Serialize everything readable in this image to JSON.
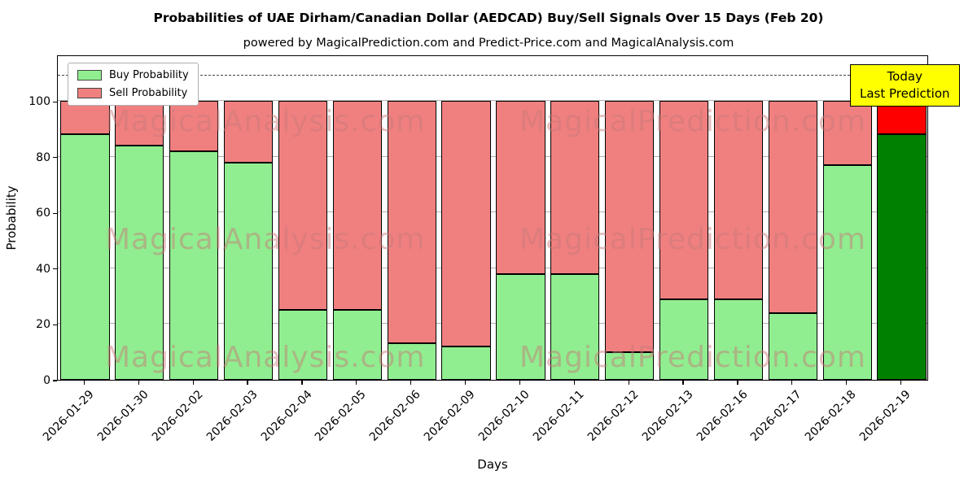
{
  "chart_data": {
    "type": "bar",
    "stacked": true,
    "title": "Probabilities of UAE Dirham/Canadian Dollar (AEDCAD) Buy/Sell Signals Over 15 Days (Feb 20)",
    "subtitle": "powered by MagicalPrediction.com and Predict-Price.com and MagicalAnalysis.com",
    "xlabel": "Days",
    "ylabel": "Probability",
    "categories": [
      "2026-01-29",
      "2026-01-30",
      "2026-02-02",
      "2026-02-03",
      "2026-02-04",
      "2026-02-05",
      "2026-02-06",
      "2026-02-09",
      "2026-02-10",
      "2026-02-11",
      "2026-02-12",
      "2026-02-13",
      "2026-02-16",
      "2026-02-17",
      "2026-02-18",
      "2026-02-19"
    ],
    "series": [
      {
        "name": "Buy Probability",
        "color": "#90ee90",
        "values": [
          88,
          84,
          82,
          78,
          25,
          25,
          13,
          12,
          38,
          38,
          10,
          29,
          29,
          24,
          77,
          88
        ]
      },
      {
        "name": "Sell Probability",
        "color": "#f08080",
        "values": [
          12,
          16,
          18,
          22,
          75,
          75,
          87,
          88,
          62,
          62,
          90,
          71,
          71,
          76,
          23,
          12
        ]
      }
    ],
    "today_index": 15,
    "today_colors": {
      "buy": "#008000",
      "sell": "#ff0000"
    },
    "ylim": [
      0,
      116.7
    ],
    "yticks": [
      0,
      20,
      40,
      60,
      80,
      100
    ],
    "grid": true,
    "dashed_line_y": 110,
    "legend_position": "upper left",
    "annotation": {
      "lines": [
        "Today",
        "Last Prediction"
      ],
      "bg_color": "#ffff00"
    },
    "watermarks": [
      "MagicalAnalysis.com",
      "MagicalPrediction.com"
    ]
  }
}
